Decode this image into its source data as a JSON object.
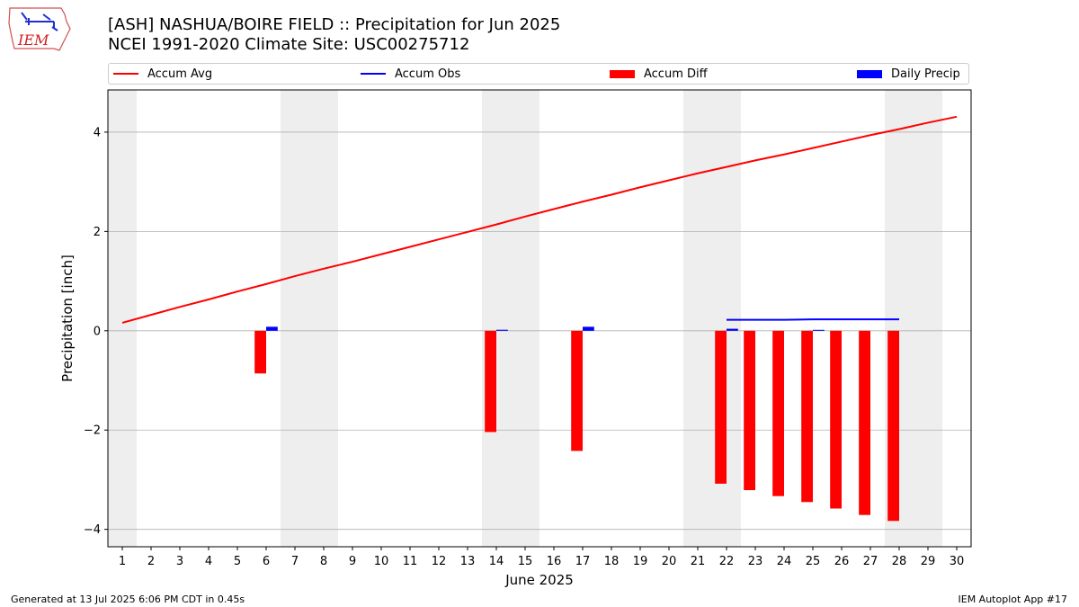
{
  "header": {
    "title_line1": "[ASH] NASHUA/BOIRE FIELD :: Precipitation for Jun 2025",
    "title_line2": "NCEI 1991-2020 Climate Site: USC00275712"
  },
  "logo": {
    "text": "IEM"
  },
  "footer": {
    "left": "Generated at 13 Jul 2025 6:06 PM CDT in 0.45s",
    "right": "IEM Autoplot App #17"
  },
  "colors": {
    "accum_avg": "#ff0000",
    "accum_obs": "#0000ff",
    "accum_diff": "#ff0000",
    "daily_precip": "#0000ff",
    "weekend_shade": "#eeeeee",
    "grid": "#b0b0b0"
  },
  "chart_data": {
    "type": "bar",
    "xlabel": "June 2025",
    "ylabel": "Precipitation [inch]",
    "xlim": [
      0.5,
      30.5
    ],
    "ylim": [
      -4.35,
      4.85
    ],
    "yticks": [
      -4,
      -2,
      0,
      2,
      4
    ],
    "ytick_labels": [
      "−4",
      "−2",
      "0",
      "2",
      "4"
    ],
    "xticks": [
      1,
      2,
      3,
      4,
      5,
      6,
      7,
      8,
      9,
      10,
      11,
      12,
      13,
      14,
      15,
      16,
      17,
      18,
      19,
      20,
      21,
      22,
      23,
      24,
      25,
      26,
      27,
      28,
      29,
      30
    ],
    "xtick_labels": [
      "1",
      "2",
      "3",
      "4",
      "5",
      "6",
      "7",
      "8",
      "9",
      "10",
      "11",
      "12",
      "13",
      "14",
      "15",
      "16",
      "17",
      "18",
      "19",
      "20",
      "21",
      "22",
      "23",
      "24",
      "25",
      "26",
      "27",
      "28",
      "29",
      "30"
    ],
    "grid": "y",
    "weekend_spans": [
      [
        0.5,
        1.5
      ],
      [
        6.5,
        8.5
      ],
      [
        13.5,
        15.5
      ],
      [
        20.5,
        22.5
      ],
      [
        27.5,
        29.5
      ]
    ],
    "legend": [
      "Accum Avg",
      "Accum Obs",
      "Accum Diff",
      "Daily Precip"
    ],
    "legend_position": "top, above plot",
    "series": [
      {
        "name": "Accum Avg",
        "kind": "line",
        "x": [
          1,
          2,
          3,
          4,
          5,
          6,
          7,
          8,
          9,
          10,
          11,
          12,
          13,
          14,
          15,
          16,
          17,
          18,
          19,
          20,
          21,
          22,
          23,
          24,
          25,
          26,
          27,
          28,
          29,
          30
        ],
        "values": [
          0.16,
          0.32,
          0.48,
          0.63,
          0.79,
          0.94,
          1.1,
          1.25,
          1.39,
          1.54,
          1.69,
          1.84,
          1.99,
          2.14,
          2.3,
          2.45,
          2.6,
          2.74,
          2.89,
          3.03,
          3.17,
          3.3,
          3.43,
          3.55,
          3.68,
          3.81,
          3.94,
          4.06,
          4.19,
          4.31
        ]
      },
      {
        "name": "Accum Obs",
        "kind": "line",
        "x": [
          22,
          23,
          24,
          25,
          26,
          27,
          28
        ],
        "values": [
          0.22,
          0.22,
          0.22,
          0.23,
          0.23,
          0.23,
          0.23
        ]
      },
      {
        "name": "Accum Diff",
        "kind": "bar",
        "x": [
          6,
          14,
          17,
          22,
          23,
          24,
          25,
          26,
          27,
          28
        ],
        "values": [
          -0.86,
          -2.04,
          -2.42,
          -3.08,
          -3.21,
          -3.33,
          -3.45,
          -3.58,
          -3.71,
          -3.83
        ]
      },
      {
        "name": "Daily Precip",
        "kind": "bar",
        "x": [
          6,
          14,
          17,
          22,
          25
        ],
        "values": [
          0.08,
          0.02,
          0.08,
          0.04,
          0.01
        ]
      }
    ]
  }
}
